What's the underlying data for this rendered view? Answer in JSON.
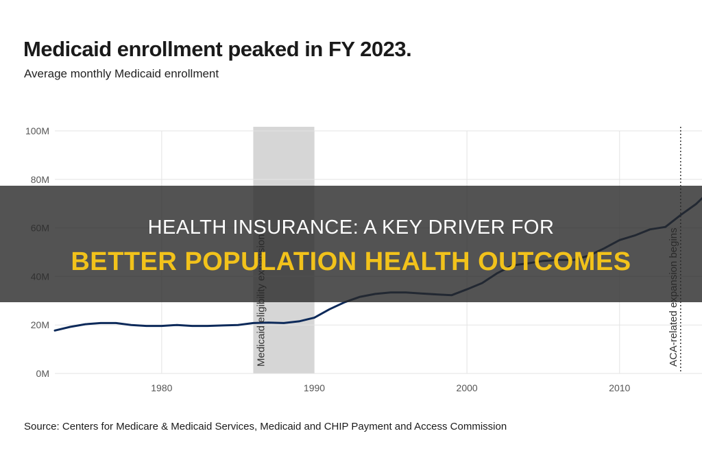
{
  "chart_data": {
    "type": "line",
    "title": "Medicaid enrollment peaked in FY 2023.",
    "subtitle": "Average monthly Medicaid enrollment",
    "xlabel": "",
    "ylabel": "",
    "xlim": [
      1973,
      2015.4
    ],
    "ylim": [
      0,
      100
    ],
    "x_ticks": [
      1980,
      1990,
      2000,
      2010
    ],
    "x_tick_labels": [
      "1980",
      "1990",
      "2000",
      "2010"
    ],
    "y_ticks": [
      0,
      20,
      40,
      60,
      80,
      100
    ],
    "y_tick_labels": [
      "0M",
      "20M",
      "40M",
      "60M",
      "80M",
      "100M"
    ],
    "grid": true,
    "series": [
      {
        "color": "#0d2a5a",
        "x": [
          1973,
          1974,
          1975,
          1976,
          1977,
          1978,
          1979,
          1980,
          1981,
          1982,
          1983,
          1984,
          1985,
          1986,
          1987,
          1988,
          1989,
          1990,
          1991,
          1992,
          1993,
          1994,
          1995,
          1996,
          1997,
          1998,
          1999,
          2000,
          2001,
          2002,
          2003,
          2004,
          2005,
          2006,
          2007,
          2008,
          2009,
          2010,
          2011,
          2012,
          2013,
          2014,
          2015,
          2015.4
        ],
        "y": [
          17.7,
          19.2,
          20.3,
          20.8,
          20.8,
          20.0,
          19.6,
          19.6,
          20.0,
          19.6,
          19.6,
          19.8,
          20.0,
          20.8,
          21.0,
          20.8,
          21.5,
          23.0,
          26.5,
          29.4,
          31.6,
          32.8,
          33.4,
          33.4,
          33.0,
          32.6,
          32.3,
          34.7,
          37.3,
          41.4,
          44.6,
          45.4,
          46.4,
          46.8,
          46.8,
          48.6,
          51.6,
          55.0,
          56.9,
          59.4,
          60.4,
          65.3,
          69.8,
          72.2
        ]
      }
    ],
    "bands": [
      {
        "x0": 1986,
        "x1": 1990,
        "label": "Medicaid eligibility expansion",
        "color": "#d6d6d6"
      }
    ],
    "vlines": [
      {
        "x": 2014,
        "label": "ACA-related expansion begins",
        "style": "dotted"
      }
    ]
  },
  "source": "Source: Centers for Medicare & Medicaid Services, Medicaid and CHIP Payment and Access Commission",
  "banner": {
    "line1": "HEALTH INSURANCE: A KEY DRIVER FOR",
    "line2": "BETTER POPULATION HEALTH OUTCOMES",
    "line2_color": "#f2c21b"
  }
}
